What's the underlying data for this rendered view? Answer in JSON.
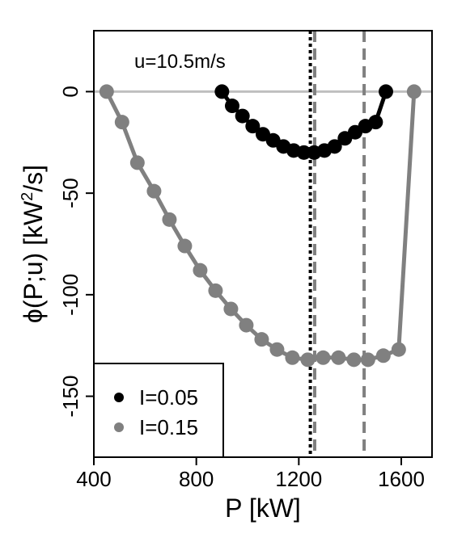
{
  "chart_data": {
    "type": "line",
    "title": "",
    "annotation": "u=10.5m/s",
    "xlabel": "P [kW]",
    "ylabel_parts": {
      "pre": "ϕ(P;u) [kW",
      "sup": "2",
      "post": "/s]"
    },
    "xlim": [
      400,
      1720
    ],
    "ylim": [
      -180,
      30
    ],
    "xticks": [
      400,
      800,
      1200,
      1600
    ],
    "xtick_labels": [
      "400",
      "800",
      "1200",
      "1600"
    ],
    "yticks": [
      0,
      -50,
      -100,
      -150
    ],
    "ytick_labels": [
      "0",
      "-50",
      "-100",
      "-150"
    ],
    "grid": false,
    "legend_position": "bottom-left",
    "reference_line": {
      "y": 0,
      "color": "#bfbfbf"
    },
    "vlines": [
      {
        "x": 1245,
        "color": "#000000",
        "style": "dotted"
      },
      {
        "x": 1262,
        "color": "#808080",
        "style": "dashed"
      },
      {
        "x": 1455,
        "color": "#808080",
        "style": "dashed"
      }
    ],
    "series": [
      {
        "name": "I=0.05",
        "color": "#000000",
        "x": [
          900,
          940,
          980,
          1020,
          1060,
          1100,
          1140,
          1180,
          1220,
          1260,
          1300,
          1340,
          1380,
          1420,
          1460,
          1500,
          1540
        ],
        "y": [
          0,
          -7,
          -12,
          -17,
          -21,
          -24,
          -27,
          -29,
          -30,
          -30,
          -29,
          -27,
          -23,
          -20,
          -17,
          -15,
          0
        ]
      },
      {
        "name": "I=0.15",
        "color": "#808080",
        "x": [
          450,
          510,
          570,
          635,
          695,
          755,
          815,
          875,
          935,
          995,
          1055,
          1115,
          1175,
          1235,
          1295,
          1355,
          1415,
          1470,
          1530,
          1590,
          1650
        ],
        "y": [
          0,
          -15,
          -35,
          -49,
          -63,
          -76,
          -88,
          -98,
          -107,
          -115,
          -122,
          -127,
          -131,
          -132,
          -131,
          -131,
          -132,
          -132,
          -130,
          -127,
          0
        ]
      }
    ]
  }
}
